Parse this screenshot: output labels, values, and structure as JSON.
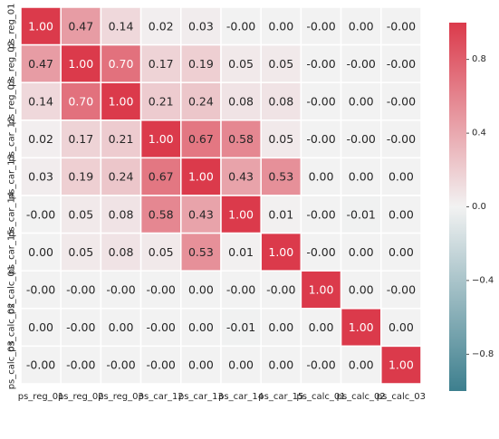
{
  "chart_data": {
    "type": "heatmap",
    "title": "",
    "labels": [
      "ps_reg_01",
      "ps_reg_02",
      "ps_reg_03",
      "ps_car_12",
      "ps_car_13",
      "ps_car_14",
      "ps_car_15",
      "ps_calc_01",
      "ps_calc_02",
      "ps_calc_03"
    ],
    "values": [
      [
        1.0,
        0.47,
        0.14,
        0.02,
        0.03,
        -0.0,
        0.0,
        -0.0,
        0.0,
        -0.0
      ],
      [
        0.47,
        1.0,
        0.7,
        0.17,
        0.19,
        0.05,
        0.05,
        -0.0,
        -0.0,
        -0.0
      ],
      [
        0.14,
        0.7,
        1.0,
        0.21,
        0.24,
        0.08,
        0.08,
        -0.0,
        0.0,
        -0.0
      ],
      [
        0.02,
        0.17,
        0.21,
        1.0,
        0.67,
        0.58,
        0.05,
        -0.0,
        -0.0,
        -0.0
      ],
      [
        0.03,
        0.19,
        0.24,
        0.67,
        1.0,
        0.43,
        0.53,
        0.0,
        0.0,
        0.0
      ],
      [
        -0.0,
        0.05,
        0.08,
        0.58,
        0.43,
        1.0,
        0.01,
        -0.0,
        -0.01,
        0.0
      ],
      [
        0.0,
        0.05,
        0.08,
        0.05,
        0.53,
        0.01,
        1.0,
        -0.0,
        0.0,
        0.0
      ],
      [
        -0.0,
        -0.0,
        -0.0,
        -0.0,
        0.0,
        -0.0,
        -0.0,
        1.0,
        0.0,
        -0.0
      ],
      [
        0.0,
        -0.0,
        0.0,
        -0.0,
        0.0,
        -0.01,
        0.0,
        0.0,
        1.0,
        0.0
      ],
      [
        -0.0,
        -0.0,
        -0.0,
        -0.0,
        0.0,
        0.0,
        0.0,
        -0.0,
        0.0,
        1.0
      ]
    ],
    "value_format": "0.00",
    "color_range": [
      -1,
      1
    ],
    "colorbar_ticks": [
      -0.8,
      -0.4,
      0.0,
      0.4,
      0.8
    ],
    "colorbar_tick_labels": [
      "−0.8",
      "−0.4",
      "0.0",
      "0.4",
      "0.8"
    ],
    "colormap": {
      "negative": "#3d7f8e",
      "center": "#f2f2f2",
      "positive": "#db3a4b"
    },
    "grid_lines_color": "#ffffff",
    "legend": "colorbar-right"
  }
}
